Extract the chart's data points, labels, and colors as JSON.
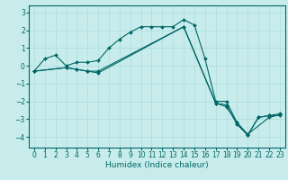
{
  "xlabel": "Humidex (Indice chaleur)",
  "ylabel": "",
  "bg_color": "#c8ecec",
  "line_color": "#006666",
  "grid_color": "#aadddd",
  "xlim": [
    -0.5,
    23.5
  ],
  "ylim": [
    -4.6,
    3.4
  ],
  "yticks": [
    -4,
    -3,
    -2,
    -1,
    0,
    1,
    2,
    3
  ],
  "xticks": [
    0,
    1,
    2,
    3,
    4,
    5,
    6,
    7,
    8,
    9,
    10,
    11,
    12,
    13,
    14,
    15,
    16,
    17,
    18,
    19,
    20,
    21,
    22,
    23
  ],
  "curves": [
    {
      "x": [
        0,
        1,
        2,
        3,
        4,
        5,
        6,
        7,
        8,
        9,
        10,
        11,
        12,
        13,
        14,
        15,
        16,
        17,
        18,
        19,
        20,
        21,
        22,
        23
      ],
      "y": [
        -0.3,
        0.4,
        0.6,
        0.0,
        0.2,
        0.2,
        0.3,
        1.0,
        1.5,
        1.9,
        2.2,
        2.2,
        2.2,
        2.2,
        2.6,
        2.3,
        0.4,
        -2.0,
        -2.0,
        -3.2,
        -3.9,
        -2.9,
        -2.8,
        -2.8
      ]
    },
    {
      "x": [
        0,
        3,
        4,
        5,
        6,
        14,
        17,
        18,
        19,
        20,
        21,
        22,
        23
      ],
      "y": [
        -0.3,
        -0.1,
        -0.2,
        -0.3,
        -0.4,
        2.2,
        -2.1,
        -2.2,
        -3.3,
        -3.9,
        -2.9,
        -2.8,
        -2.7
      ]
    },
    {
      "x": [
        0,
        3,
        4,
        5,
        6,
        14,
        17,
        18,
        19,
        20,
        22,
        23
      ],
      "y": [
        -0.3,
        -0.1,
        -0.2,
        -0.3,
        -0.3,
        2.2,
        -2.1,
        -2.3,
        -3.2,
        -3.85,
        -2.9,
        -2.75
      ]
    }
  ],
  "xlabel_fontsize": 6.5,
  "tick_fontsize": 5.5
}
